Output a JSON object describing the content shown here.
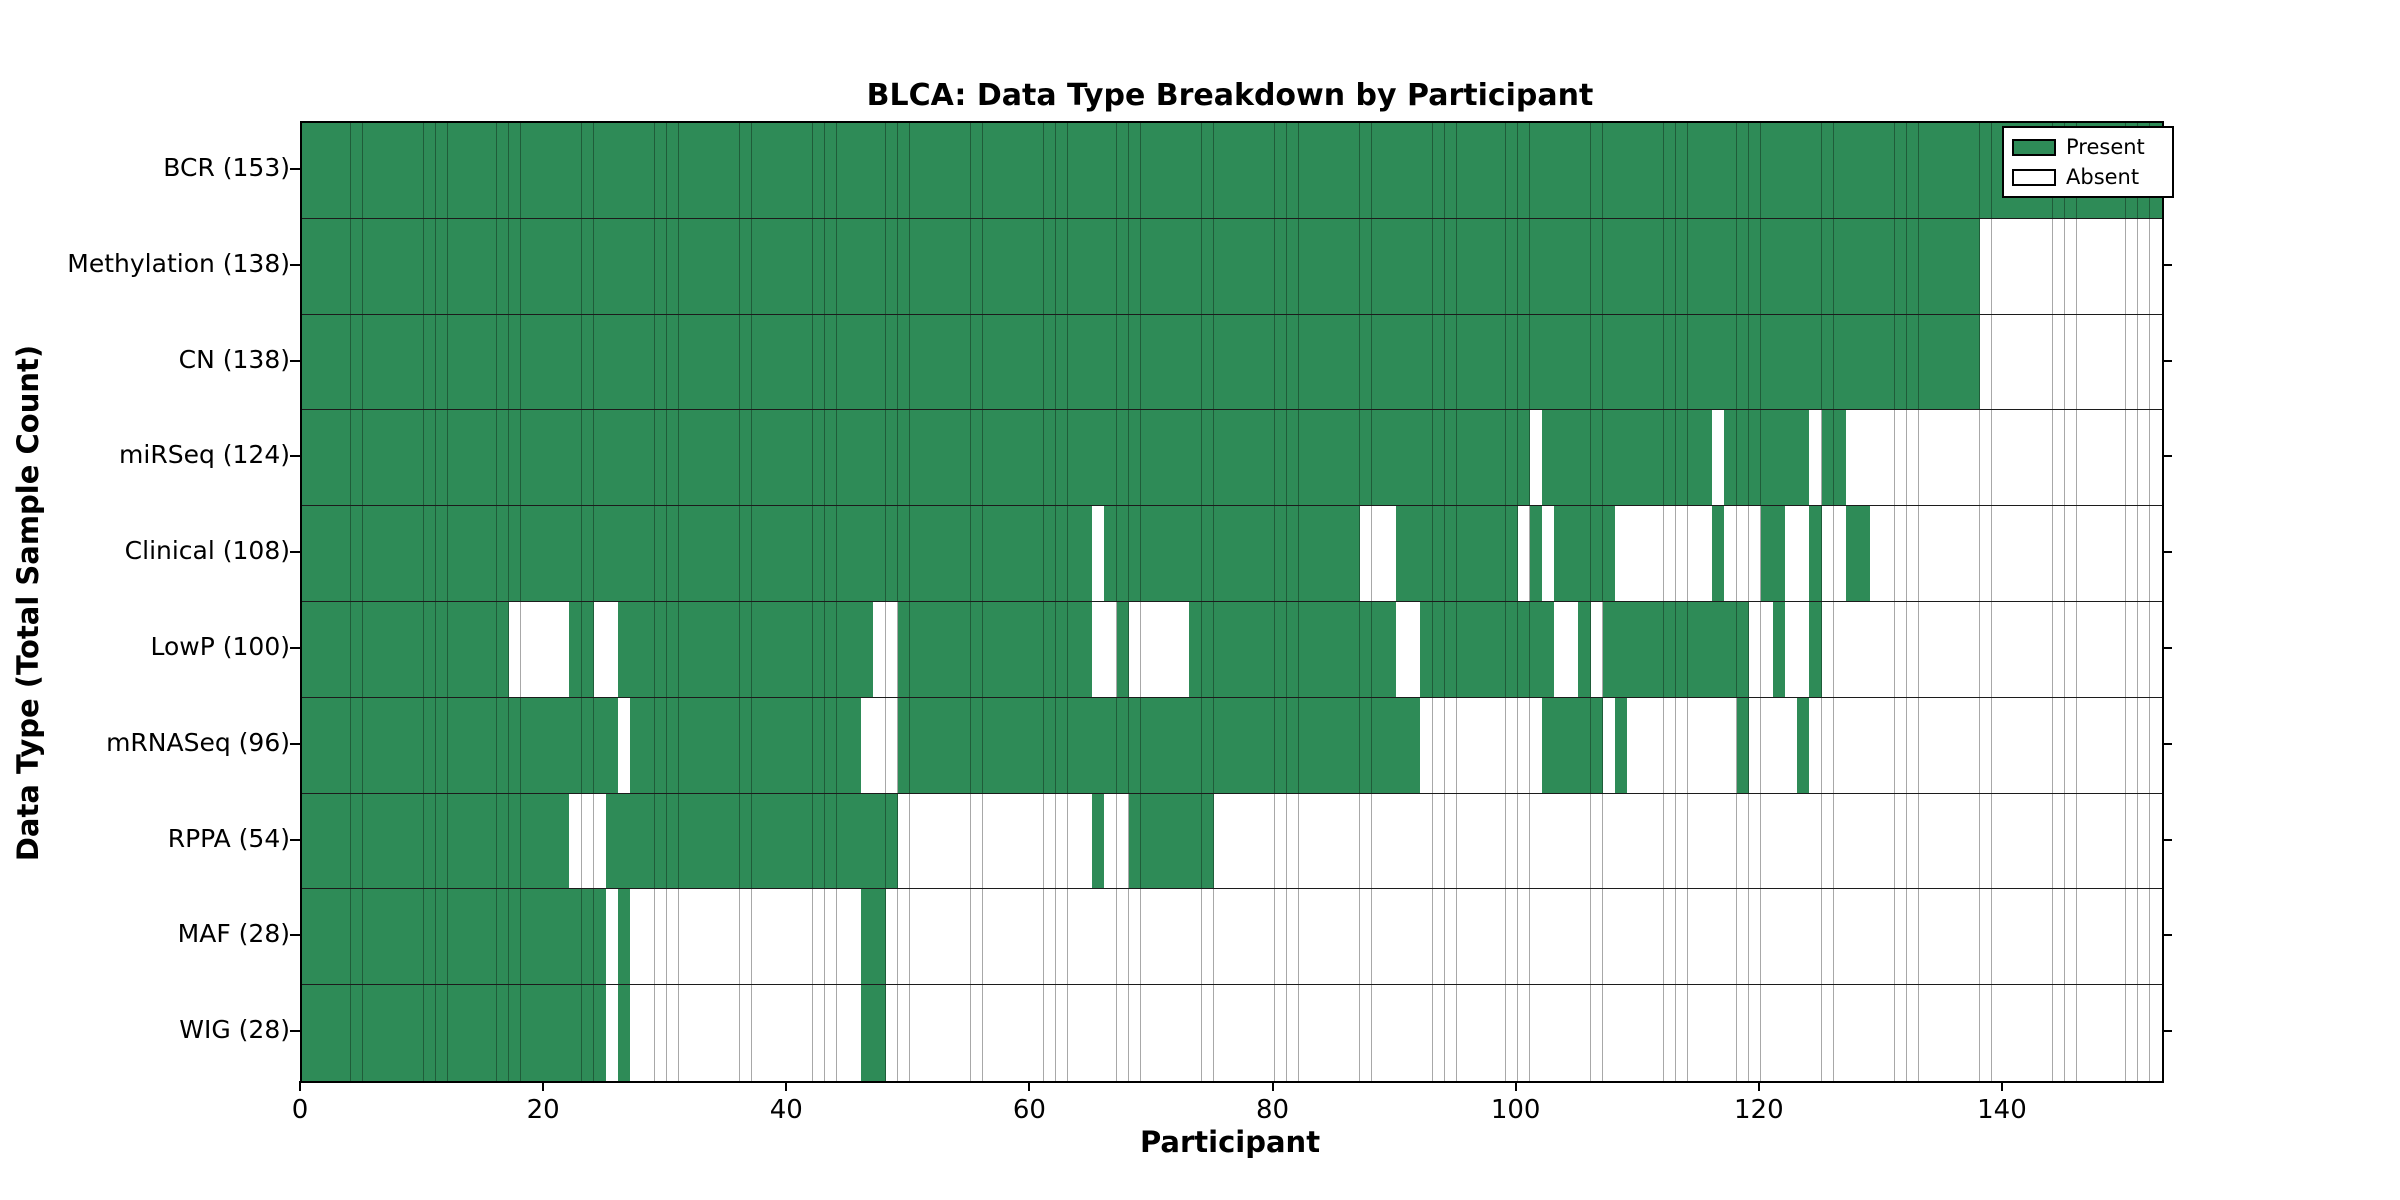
{
  "chart_data": {
    "type": "heatmap",
    "title": "BLCA: Data Type Breakdown by Participant",
    "xlabel": "Participant",
    "ylabel": "Data Type (Total Sample Count)",
    "legend": {
      "present": "Present",
      "absent": "Absent"
    },
    "colors": {
      "present_fill": "#2e8b57",
      "absent_fill": "#ffffff",
      "grid_on_present": "rgba(15,45,28,0.50)",
      "grid_on_absent": "#a8a8a8",
      "row_separator": "#1c1c1c",
      "axis": "#000000"
    },
    "n_participants": 153,
    "x_range": [
      0,
      153
    ],
    "x_ticks": [
      0,
      20,
      40,
      60,
      80,
      100,
      120,
      140
    ],
    "grid": "per-participant vertical cell edges",
    "legend_position": "upper right inside axes",
    "runs_format": "[start_col, end_col_exclusive, present1_absent0]",
    "rows": [
      {
        "label": "BCR (153)",
        "name": "BCR",
        "count": 153,
        "runs": [
          [
            0,
            153,
            1
          ]
        ]
      },
      {
        "label": "Methylation (138)",
        "name": "Methylation",
        "count": 138,
        "runs": [
          [
            0,
            138,
            1
          ],
          [
            138,
            153,
            0
          ]
        ]
      },
      {
        "label": "CN (138)",
        "name": "CN",
        "count": 138,
        "runs": [
          [
            0,
            138,
            1
          ],
          [
            138,
            153,
            0
          ]
        ]
      },
      {
        "label": "miRSeq (124)",
        "name": "miRSeq",
        "count": 124,
        "runs": [
          [
            0,
            101,
            1
          ],
          [
            101,
            102,
            0
          ],
          [
            102,
            116,
            1
          ],
          [
            116,
            117,
            0
          ],
          [
            117,
            124,
            1
          ],
          [
            124,
            125,
            0
          ],
          [
            125,
            127,
            1
          ],
          [
            127,
            153,
            0
          ]
        ]
      },
      {
        "label": "Clinical (108)",
        "name": "Clinical",
        "count": 108,
        "runs": [
          [
            0,
            65,
            1
          ],
          [
            65,
            66,
            0
          ],
          [
            66,
            87,
            1
          ],
          [
            87,
            90,
            0
          ],
          [
            90,
            100,
            1
          ],
          [
            100,
            101,
            0
          ],
          [
            101,
            102,
            1
          ],
          [
            102,
            103,
            0
          ],
          [
            103,
            108,
            1
          ],
          [
            108,
            116,
            0
          ],
          [
            116,
            117,
            1
          ],
          [
            117,
            120,
            0
          ],
          [
            120,
            122,
            1
          ],
          [
            122,
            124,
            0
          ],
          [
            124,
            125,
            1
          ],
          [
            125,
            127,
            0
          ],
          [
            127,
            129,
            1
          ],
          [
            129,
            153,
            0
          ]
        ]
      },
      {
        "label": "LowP (100)",
        "name": "LowP",
        "count": 100,
        "runs": [
          [
            0,
            17,
            1
          ],
          [
            17,
            22,
            0
          ],
          [
            22,
            24,
            1
          ],
          [
            24,
            26,
            0
          ],
          [
            26,
            47,
            1
          ],
          [
            47,
            49,
            0
          ],
          [
            49,
            65,
            1
          ],
          [
            65,
            67,
            0
          ],
          [
            67,
            68,
            1
          ],
          [
            68,
            73,
            0
          ],
          [
            73,
            90,
            1
          ],
          [
            90,
            92,
            0
          ],
          [
            92,
            103,
            1
          ],
          [
            103,
            105,
            0
          ],
          [
            105,
            106,
            1
          ],
          [
            106,
            107,
            0
          ],
          [
            107,
            119,
            1
          ],
          [
            119,
            121,
            0
          ],
          [
            121,
            122,
            1
          ],
          [
            122,
            124,
            0
          ],
          [
            124,
            125,
            1
          ],
          [
            125,
            153,
            0
          ]
        ]
      },
      {
        "label": "mRNASeq (96)",
        "name": "mRNASeq",
        "count": 96,
        "runs": [
          [
            0,
            26,
            1
          ],
          [
            26,
            27,
            0
          ],
          [
            27,
            46,
            1
          ],
          [
            46,
            49,
            0
          ],
          [
            49,
            92,
            1
          ],
          [
            92,
            102,
            0
          ],
          [
            102,
            107,
            1
          ],
          [
            107,
            108,
            0
          ],
          [
            108,
            109,
            1
          ],
          [
            109,
            118,
            0
          ],
          [
            118,
            119,
            1
          ],
          [
            119,
            123,
            0
          ],
          [
            123,
            124,
            1
          ],
          [
            124,
            153,
            0
          ]
        ]
      },
      {
        "label": "RPPA (54)",
        "name": "RPPA",
        "count": 54,
        "runs": [
          [
            0,
            22,
            1
          ],
          [
            22,
            25,
            0
          ],
          [
            25,
            49,
            1
          ],
          [
            49,
            65,
            0
          ],
          [
            65,
            66,
            1
          ],
          [
            66,
            68,
            0
          ],
          [
            68,
            75,
            1
          ],
          [
            75,
            153,
            0
          ]
        ]
      },
      {
        "label": "MAF (28)",
        "name": "MAF",
        "count": 28,
        "runs": [
          [
            0,
            25,
            1
          ],
          [
            25,
            26,
            0
          ],
          [
            26,
            27,
            1
          ],
          [
            27,
            46,
            0
          ],
          [
            46,
            48,
            1
          ],
          [
            48,
            153,
            0
          ]
        ]
      },
      {
        "label": "WIG (28)",
        "name": "WIG",
        "count": 28,
        "runs": [
          [
            0,
            25,
            1
          ],
          [
            25,
            26,
            0
          ],
          [
            26,
            27,
            1
          ],
          [
            27,
            46,
            0
          ],
          [
            46,
            48,
            1
          ],
          [
            48,
            153,
            0
          ]
        ]
      }
    ]
  }
}
